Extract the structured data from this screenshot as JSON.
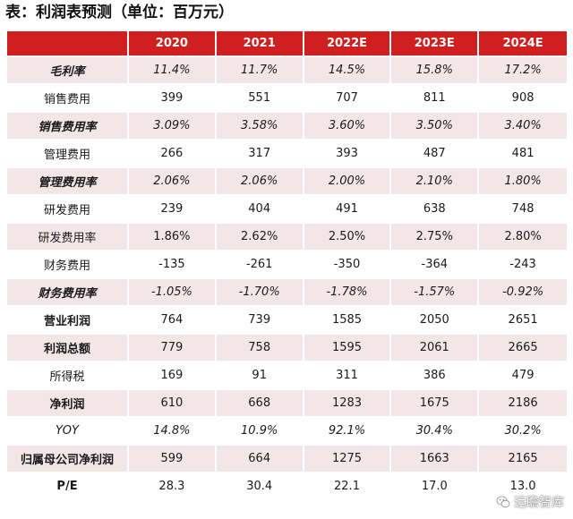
{
  "title": "表：利润表预测（单位：百万元）",
  "table": {
    "headers": [
      "",
      "2020",
      "2021",
      "2022E",
      "2023E",
      "2024E"
    ],
    "rows": [
      {
        "label": "毛利率",
        "values": [
          "11.4%",
          "11.7%",
          "14.5%",
          "15.8%",
          "17.2%"
        ]
      },
      {
        "label": "销售费用",
        "values": [
          "399",
          "551",
          "707",
          "811",
          "908"
        ]
      },
      {
        "label": "销售费用率",
        "values": [
          "3.09%",
          "3.58%",
          "3.60%",
          "3.50%",
          "3.40%"
        ]
      },
      {
        "label": "管理费用",
        "values": [
          "266",
          "317",
          "393",
          "487",
          "481"
        ]
      },
      {
        "label": "管理费用率",
        "values": [
          "2.06%",
          "2.06%",
          "2.00%",
          "2.10%",
          "1.80%"
        ]
      },
      {
        "label": "研发费用",
        "values": [
          "239",
          "404",
          "491",
          "638",
          "748"
        ]
      },
      {
        "label": "研发费用率",
        "values": [
          "1.86%",
          "2.62%",
          "2.50%",
          "2.75%",
          "2.80%"
        ]
      },
      {
        "label": "财务费用",
        "values": [
          "-135",
          "-261",
          "-350",
          "-364",
          "-243"
        ]
      },
      {
        "label": "财务费用率",
        "values": [
          "-1.05%",
          "-1.70%",
          "-1.78%",
          "-1.57%",
          "-0.92%"
        ]
      },
      {
        "label": "营业利润",
        "values": [
          "764",
          "739",
          "1585",
          "2050",
          "2651"
        ]
      },
      {
        "label": "利润总额",
        "values": [
          "779",
          "758",
          "1595",
          "2061",
          "2665"
        ]
      },
      {
        "label": "所得税",
        "values": [
          "169",
          "91",
          "311",
          "386",
          "479"
        ]
      },
      {
        "label": "净利润",
        "values": [
          "610",
          "668",
          "1283",
          "1675",
          "2186"
        ]
      },
      {
        "label": "YOY",
        "values": [
          "14.8%",
          "10.9%",
          "92.1%",
          "30.4%",
          "30.2%"
        ]
      },
      {
        "label": "归属母公司净利润",
        "values": [
          "599",
          "664",
          "1275",
          "1663",
          "2165"
        ]
      },
      {
        "label": "P/E",
        "values": [
          "28.3",
          "30.4",
          "22.1",
          "17.0",
          "13.0"
        ]
      }
    ]
  },
  "watermark": {
    "text": "远瞻智库",
    "icon": "wechat-icon"
  },
  "colors": {
    "header_bg": "#cf1f1f",
    "shaded_row_bg": "#f3e6e8"
  }
}
